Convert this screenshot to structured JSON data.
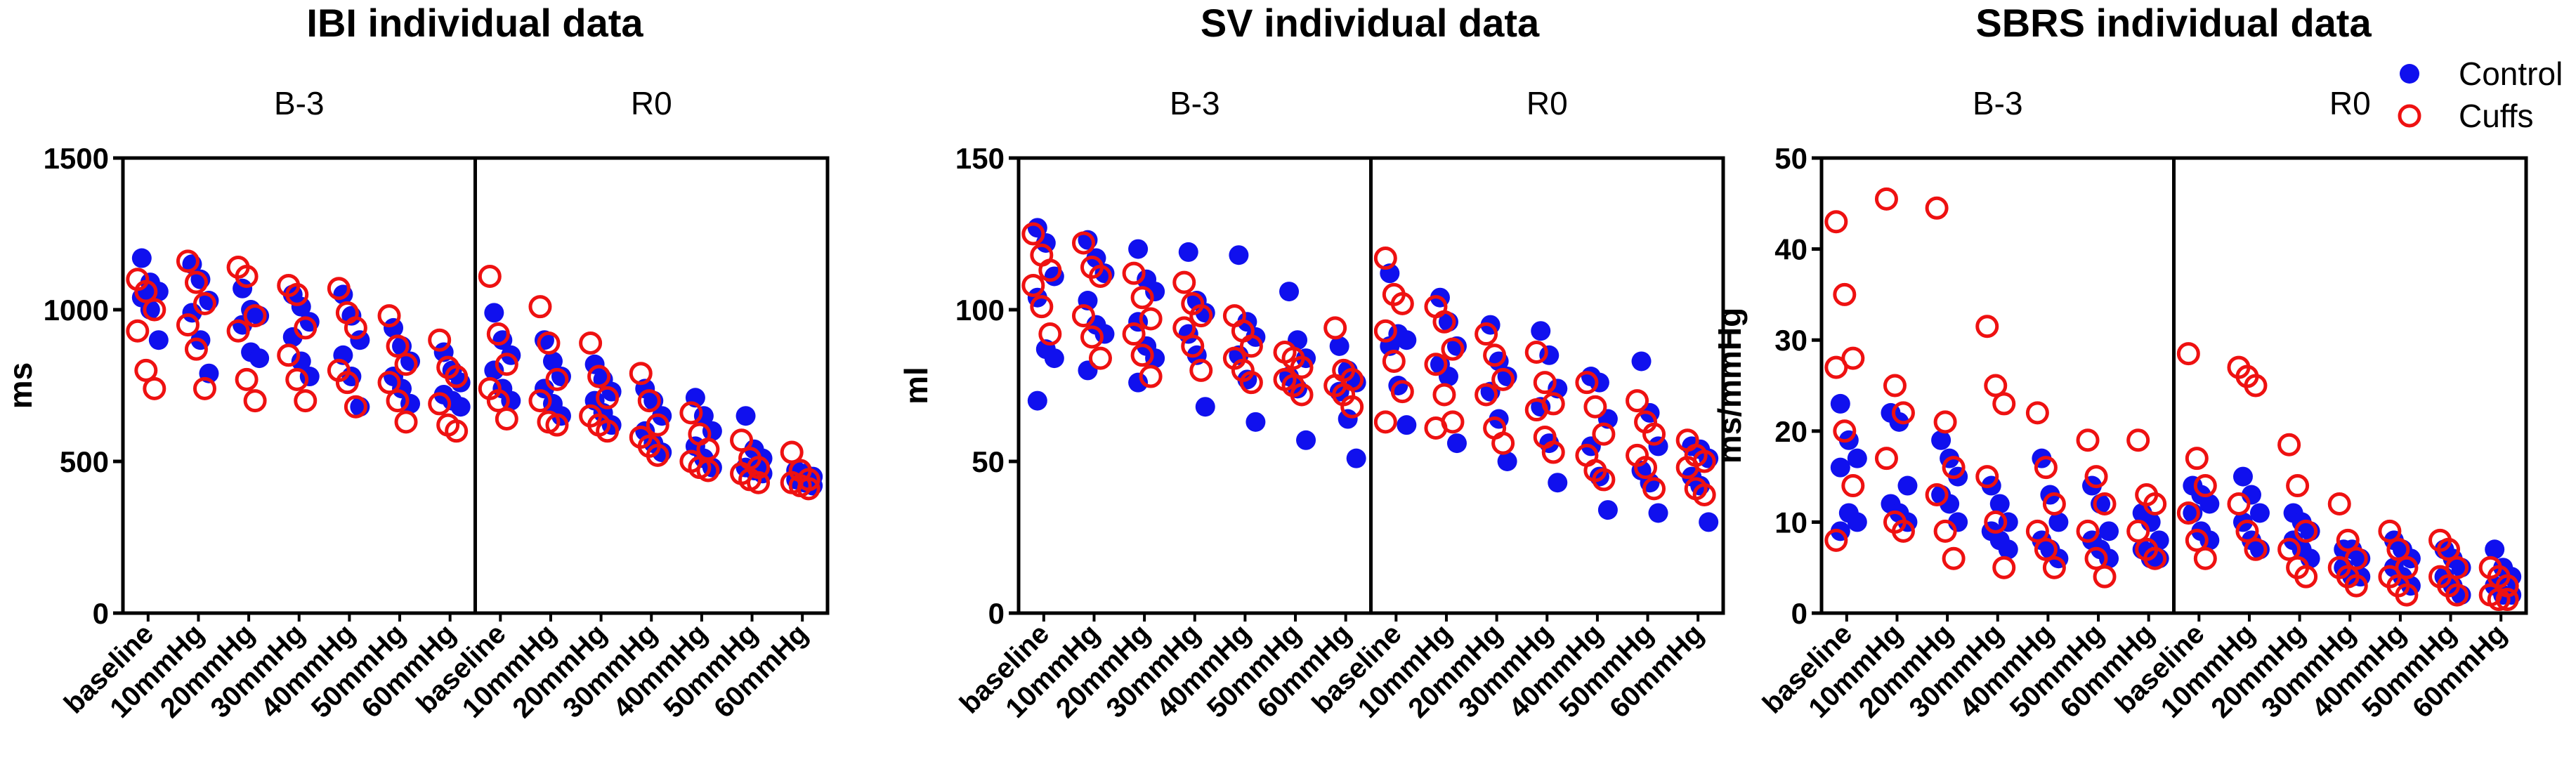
{
  "colors": {
    "control": "#1010ee",
    "cuffs": "#ee1111",
    "axis": "#000000"
  },
  "legend": {
    "control": "Control",
    "cuffs": "Cuffs"
  },
  "chart_data": [
    {
      "type": "scatter",
      "title": "IBI individual data",
      "ylabel": "ms",
      "ylim": [
        0,
        1500
      ],
      "yticks": [
        0,
        500,
        1000,
        1500
      ],
      "conditions": [
        "B-3",
        "R0"
      ],
      "categories": [
        "baseline",
        "10mmHg",
        "20mmHg",
        "30mmHg",
        "40mmHg",
        "50mmHg",
        "60mmHg"
      ],
      "series": [
        {
          "name": "Control",
          "values": {
            "B-3": [
              [
                1170,
                1090,
                1060,
                1040,
                1000,
                900
              ],
              [
                1150,
                1100,
                1030,
                990,
                900,
                790
              ],
              [
                1070,
                1000,
                980,
                950,
                860,
                840
              ],
              [
                1050,
                1010,
                960,
                910,
                830,
                780
              ],
              [
                1050,
                980,
                900,
                850,
                780,
                680
              ],
              [
                940,
                880,
                830,
                780,
                740,
                690
              ],
              [
                860,
                800,
                760,
                720,
                700,
                680
              ]
            ],
            "R0": [
              [
                990,
                900,
                850,
                800,
                740,
                700
              ],
              [
                900,
                830,
                780,
                740,
                690,
                650
              ],
              [
                820,
                770,
                730,
                700,
                660,
                620
              ],
              [
                740,
                700,
                650,
                600,
                560,
                530
              ],
              [
                710,
                650,
                600,
                550,
                510,
                480
              ],
              [
                650,
                540,
                510,
                480,
                470,
                460
              ],
              [
                470,
                460,
                450,
                440,
                430,
                420
              ]
            ]
          }
        },
        {
          "name": "Cuffs",
          "values": {
            "B-3": [
              [
                1100,
                1060,
                1000,
                930,
                800,
                740
              ],
              [
                1160,
                1090,
                1020,
                950,
                870,
                740
              ],
              [
                1140,
                1110,
                980,
                930,
                770,
                700
              ],
              [
                1080,
                1050,
                940,
                850,
                770,
                700
              ],
              [
                1070,
                990,
                940,
                800,
                760,
                680
              ],
              [
                980,
                880,
                820,
                760,
                700,
                630
              ],
              [
                900,
                810,
                780,
                690,
                620,
                600
              ]
            ],
            "R0": [
              [
                1110,
                920,
                820,
                740,
                700,
                640
              ],
              [
                1010,
                890,
                770,
                700,
                630,
                620
              ],
              [
                890,
                780,
                710,
                650,
                620,
                600
              ],
              [
                790,
                700,
                620,
                580,
                550,
                520
              ],
              [
                660,
                590,
                540,
                500,
                480,
                470
              ],
              [
                570,
                510,
                480,
                460,
                440,
                430
              ],
              [
                530,
                470,
                440,
                430,
                420,
                410
              ]
            ]
          }
        }
      ]
    },
    {
      "type": "scatter",
      "title": "SV individual data",
      "ylabel": "ml",
      "ylim": [
        0,
        150
      ],
      "yticks": [
        0,
        50,
        100,
        150
      ],
      "conditions": [
        "B-3",
        "R0"
      ],
      "categories": [
        "baseline",
        "10mmHg",
        "20mmHg",
        "30mmHg",
        "40mmHg",
        "50mmHg",
        "60mmHg"
      ],
      "series": [
        {
          "name": "Control",
          "values": {
            "B-3": [
              [
                127,
                122,
                111,
                104,
                87,
                84,
                70
              ],
              [
                123,
                117,
                112,
                103,
                95,
                92,
                80
              ],
              [
                120,
                110,
                106,
                96,
                88,
                84,
                76
              ],
              [
                119,
                103,
                99,
                92,
                85,
                68
              ],
              [
                118,
                96,
                91,
                85,
                77,
                63
              ],
              [
                106,
                90,
                84,
                78,
                74,
                57
              ],
              [
                88,
                80,
                76,
                73,
                64,
                51
              ]
            ],
            "R0": [
              [
                112,
                92,
                90,
                88,
                75,
                62
              ],
              [
                104,
                96,
                88,
                82,
                78,
                56
              ],
              [
                95,
                83,
                78,
                73,
                64,
                50
              ],
              [
                93,
                85,
                74,
                68,
                56,
                43
              ],
              [
                78,
                76,
                64,
                55,
                45,
                34
              ],
              [
                83,
                66,
                55,
                47,
                43,
                33
              ],
              [
                55,
                54,
                51,
                45,
                42,
                30
              ]
            ]
          }
        },
        {
          "name": "Cuffs",
          "values": {
            "B-3": [
              [
                125,
                118,
                113,
                108,
                101,
                92
              ],
              [
                122,
                114,
                111,
                98,
                91,
                84
              ],
              [
                112,
                104,
                97,
                92,
                85,
                78
              ],
              [
                109,
                102,
                98,
                94,
                88,
                80
              ],
              [
                98,
                93,
                88,
                84,
                80,
                76
              ],
              [
                86,
                84,
                81,
                77,
                75,
                72
              ],
              [
                94,
                80,
                77,
                75,
                72,
                68
              ]
            ],
            "R0": [
              [
                117,
                105,
                102,
                93,
                83,
                73,
                63
              ],
              [
                101,
                96,
                87,
                82,
                72,
                63,
                61
              ],
              [
                92,
                85,
                77,
                72,
                61,
                56
              ],
              [
                86,
                76,
                69,
                67,
                58,
                53
              ],
              [
                76,
                68,
                59,
                52,
                47,
                44
              ],
              [
                70,
                63,
                59,
                52,
                48,
                41
              ],
              [
                57,
                52,
                50,
                48,
                41,
                39
              ]
            ]
          }
        }
      ]
    },
    {
      "type": "scatter",
      "title": "SBRS individual data",
      "ylabel": "ms/mmHg",
      "ylim": [
        0,
        50
      ],
      "yticks": [
        0,
        10,
        20,
        30,
        40,
        50
      ],
      "conditions": [
        "B-3",
        "R0"
      ],
      "categories": [
        "baseline",
        "10mmHg",
        "20mmHg",
        "30mmHg",
        "40mmHg",
        "50mmHg",
        "60mmHg"
      ],
      "series": [
        {
          "name": "Control",
          "values": {
            "B-3": [
              [
                23,
                19,
                17,
                16,
                11,
                10,
                9
              ],
              [
                22,
                21,
                14,
                12,
                11,
                10
              ],
              [
                19,
                17,
                15,
                13,
                12,
                10
              ],
              [
                14,
                12,
                10,
                9,
                8,
                7
              ],
              [
                17,
                13,
                10,
                8,
                7,
                6
              ],
              [
                14,
                12,
                9,
                8,
                7,
                6
              ],
              [
                11,
                10,
                8,
                7,
                6,
                6
              ]
            ],
            "R0": [
              [
                14,
                13,
                12,
                11,
                9,
                8
              ],
              [
                15,
                13,
                11,
                10,
                8,
                7
              ],
              [
                11,
                10,
                9,
                8,
                7,
                6
              ],
              [
                7,
                7,
                6,
                5,
                4,
                4
              ],
              [
                8,
                7,
                6,
                5,
                4,
                3
              ],
              [
                7,
                6,
                5,
                4,
                3,
                2
              ],
              [
                7,
                5,
                4,
                3,
                2,
                2
              ]
            ]
          }
        },
        {
          "name": "Cuffs",
          "values": {
            "B-3": [
              [
                43,
                35,
                28,
                27,
                20,
                14,
                8
              ],
              [
                45.5,
                25,
                22,
                17,
                10,
                9
              ],
              [
                44.5,
                21,
                16,
                13,
                9,
                6
              ],
              [
                31.5,
                25,
                23,
                15,
                10,
                5
              ],
              [
                22,
                16,
                12,
                9,
                7,
                5
              ],
              [
                19,
                15,
                12,
                9,
                6,
                4
              ],
              [
                19,
                13,
                12,
                9,
                7,
                6
              ]
            ],
            "R0": [
              [
                28.5,
                17,
                14,
                11,
                8,
                6
              ],
              [
                27,
                26,
                25,
                12,
                9,
                7
              ],
              [
                18.5,
                14,
                9,
                7,
                5,
                4
              ],
              [
                12,
                8,
                6,
                5,
                4,
                3
              ],
              [
                9,
                7,
                5,
                4,
                3,
                2
              ],
              [
                8,
                7,
                5,
                4,
                3,
                2
              ],
              [
                5,
                4,
                3,
                2,
                1.5,
                1.5
              ]
            ]
          }
        }
      ]
    }
  ]
}
